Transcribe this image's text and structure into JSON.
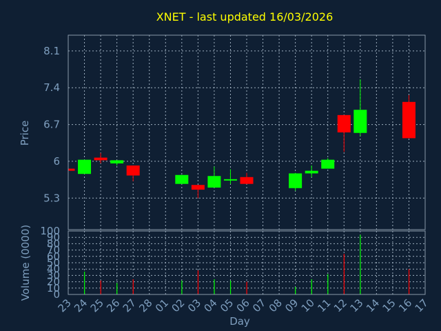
{
  "colors": {
    "background": "#0f1f33",
    "title": "#ffff00",
    "axis_text": "#7f9fbf",
    "grid": "#9fb0c0",
    "up": "#00ff00",
    "down": "#ff0000",
    "frame": "#8899aa"
  },
  "chart_data": [
    {
      "type": "candlestick",
      "title": "XNET - last updated 16/03/2026",
      "ylabel": "Price",
      "ylim": [
        4.7,
        8.4
      ],
      "yticks": [
        5.3,
        6,
        6.7,
        7.4,
        8.1
      ],
      "ytick_labels": [
        "5.3",
        "6",
        "6.7",
        "7.4",
        "8.1"
      ],
      "grid": true,
      "x_labels": [
        "23",
        "24",
        "25",
        "26",
        "27",
        "28",
        "01",
        "02",
        "03",
        "04",
        "05",
        "06",
        "07",
        "08",
        "09",
        "10",
        "11",
        "12",
        "13",
        "14",
        "15",
        "16",
        "17"
      ],
      "candles": [
        {
          "x": "23",
          "open": 5.86,
          "close": 5.82,
          "high": 5.86,
          "low": 5.82
        },
        {
          "x": "24",
          "open": 5.76,
          "close": 6.03,
          "high": 6.03,
          "low": 5.76
        },
        {
          "x": "25",
          "open": 6.07,
          "close": 6.02,
          "high": 6.16,
          "low": 5.96
        },
        {
          "x": "26",
          "open": 5.96,
          "close": 6.02,
          "high": 6.02,
          "low": 5.92
        },
        {
          "x": "27",
          "open": 5.92,
          "close": 5.73,
          "high": 5.92,
          "low": 5.62
        },
        {
          "x": "02",
          "open": 5.57,
          "close": 5.74,
          "high": 5.74,
          "low": 5.57
        },
        {
          "x": "03",
          "open": 5.55,
          "close": 5.46,
          "high": 5.55,
          "low": 5.3
        },
        {
          "x": "04",
          "open": 5.5,
          "close": 5.72,
          "high": 5.9,
          "low": 5.5
        },
        {
          "x": "05",
          "open": 5.64,
          "close": 5.66,
          "high": 5.85,
          "low": 5.57
        },
        {
          "x": "06",
          "open": 5.7,
          "close": 5.57,
          "high": 5.78,
          "low": 5.57
        },
        {
          "x": "09",
          "open": 5.49,
          "close": 5.77,
          "high": 5.78,
          "low": 5.44
        },
        {
          "x": "10",
          "open": 5.77,
          "close": 5.82,
          "high": 5.92,
          "low": 5.7
        },
        {
          "x": "11",
          "open": 5.86,
          "close": 6.03,
          "high": 6.06,
          "low": 5.86
        },
        {
          "x": "12",
          "open": 6.88,
          "close": 6.55,
          "high": 6.88,
          "low": 6.18
        },
        {
          "x": "13",
          "open": 6.54,
          "close": 6.98,
          "high": 7.56,
          "low": 6.48
        },
        {
          "x": "16",
          "open": 7.13,
          "close": 6.44,
          "high": 7.26,
          "low": 6.44
        }
      ]
    },
    {
      "type": "bar",
      "ylabel": "Volume (0000)",
      "xlabel": "Day",
      "ylim": [
        0,
        100
      ],
      "yticks": [
        0,
        10,
        20,
        30,
        40,
        50,
        60,
        70,
        80,
        90,
        100
      ],
      "ytick_labels": [
        "0",
        "10",
        "20",
        "30",
        "40",
        "50",
        "60",
        "70",
        "80",
        "90",
        "100"
      ],
      "grid": true,
      "x_labels": [
        "23",
        "24",
        "25",
        "26",
        "27",
        "28",
        "01",
        "02",
        "03",
        "04",
        "05",
        "06",
        "07",
        "08",
        "09",
        "10",
        "11",
        "12",
        "13",
        "14",
        "15",
        "16",
        "17"
      ],
      "bars": [
        {
          "x": "24",
          "value": 36,
          "direction": "up"
        },
        {
          "x": "25",
          "value": 22,
          "direction": "down"
        },
        {
          "x": "26",
          "value": 18,
          "direction": "up"
        },
        {
          "x": "27",
          "value": 24,
          "direction": "down"
        },
        {
          "x": "02",
          "value": 22,
          "direction": "up"
        },
        {
          "x": "03",
          "value": 38,
          "direction": "down"
        },
        {
          "x": "04",
          "value": 24,
          "direction": "up"
        },
        {
          "x": "05",
          "value": 22,
          "direction": "up"
        },
        {
          "x": "06",
          "value": 20,
          "direction": "down"
        },
        {
          "x": "09",
          "value": 12,
          "direction": "up"
        },
        {
          "x": "10",
          "value": 24,
          "direction": "up"
        },
        {
          "x": "11",
          "value": 32,
          "direction": "up"
        },
        {
          "x": "12",
          "value": 64,
          "direction": "down"
        },
        {
          "x": "13",
          "value": 94,
          "direction": "up"
        },
        {
          "x": "16",
          "value": 40,
          "direction": "down"
        }
      ]
    }
  ]
}
